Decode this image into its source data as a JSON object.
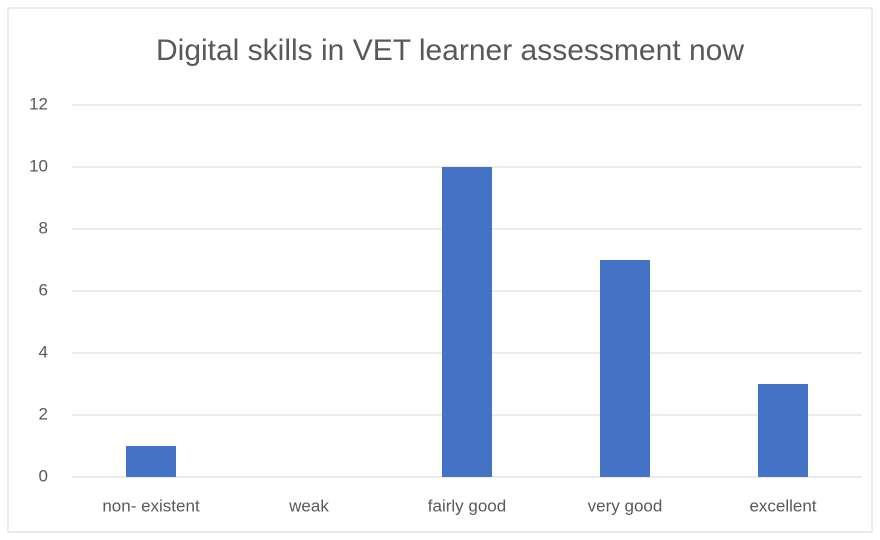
{
  "chart_data": {
    "type": "bar",
    "title": "Digital skills in VET learner assessment now",
    "categories": [
      "non- existent",
      "weak",
      "fairly good",
      "very good",
      "excellent"
    ],
    "values": [
      1,
      0,
      10,
      7,
      3
    ],
    "color": "#4472c4",
    "ylim": [
      0,
      12
    ],
    "yticks": [
      0,
      2,
      4,
      6,
      8,
      10,
      12
    ],
    "grid": true
  }
}
